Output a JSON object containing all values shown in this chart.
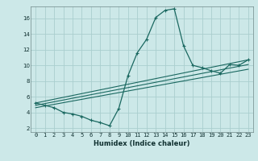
{
  "bg_color": "#cce8e8",
  "grid_color": "#aacece",
  "line_color": "#1a6860",
  "marker": "+",
  "xlabel": "Humidex (Indice chaleur)",
  "xlim": [
    -0.5,
    23.5
  ],
  "ylim": [
    1.5,
    17.5
  ],
  "xtick_labels": [
    "0",
    "1",
    "2",
    "3",
    "4",
    "5",
    "6",
    "7",
    "8",
    "9",
    "10",
    "11",
    "12",
    "13",
    "14",
    "15",
    "16",
    "17",
    "18",
    "19",
    "20",
    "21",
    "22",
    "23"
  ],
  "ytick_values": [
    2,
    4,
    6,
    8,
    10,
    12,
    14,
    16
  ],
  "main_series": {
    "x": [
      0,
      1,
      2,
      3,
      4,
      5,
      6,
      7,
      8,
      9,
      10,
      11,
      12,
      13,
      14,
      15,
      16,
      17,
      18,
      19,
      20,
      21,
      22,
      23
    ],
    "y": [
      5.2,
      4.9,
      4.6,
      4.0,
      3.8,
      3.5,
      3.0,
      2.7,
      2.3,
      4.5,
      8.7,
      11.6,
      13.3,
      16.1,
      17.0,
      17.2,
      12.5,
      10.0,
      9.7,
      9.3,
      9.0,
      10.1,
      10.0,
      10.7
    ]
  },
  "trend_lines": [
    {
      "x0": 0,
      "y0": 5.2,
      "x1": 23,
      "y1": 10.7
    },
    {
      "x0": 0,
      "y0": 4.9,
      "x1": 23,
      "y1": 10.1
    },
    {
      "x0": 0,
      "y0": 4.6,
      "x1": 23,
      "y1": 9.5
    }
  ]
}
